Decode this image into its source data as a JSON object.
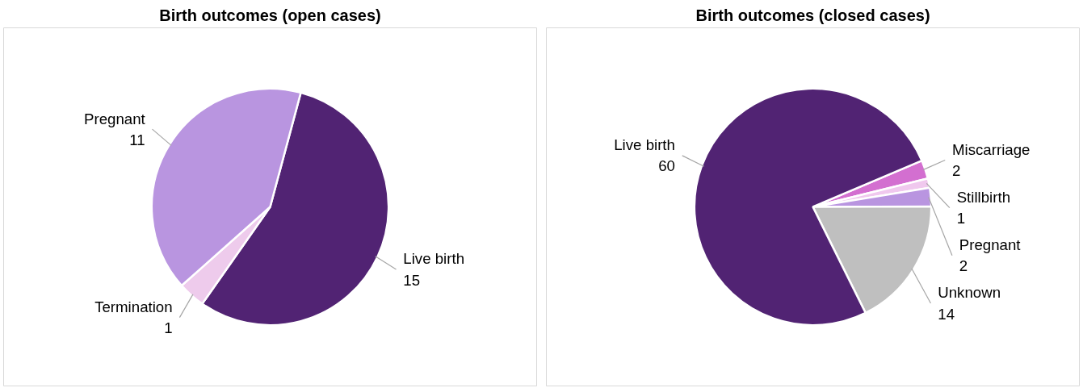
{
  "chart_data": [
    {
      "type": "pie",
      "title": "Birth outcomes (open cases)",
      "categories": [
        "Live birth",
        "Termination",
        "Pregnant"
      ],
      "values": [
        15,
        1,
        11
      ],
      "colors": [
        "#512373",
        "#eecbec",
        "#b995e0"
      ],
      "data_labels": true,
      "legend": false
    },
    {
      "type": "pie",
      "title": "Birth outcomes (closed cases)",
      "categories": [
        "Miscarriage",
        "Stillbirth",
        "Pregnant",
        "Unknown",
        "Live birth"
      ],
      "values": [
        2,
        1,
        2,
        14,
        60
      ],
      "colors": [
        "#d36fd0",
        "#f0c8ee",
        "#b995e0",
        "#bfbfbf",
        "#512373"
      ],
      "data_labels": true,
      "legend": false
    }
  ]
}
